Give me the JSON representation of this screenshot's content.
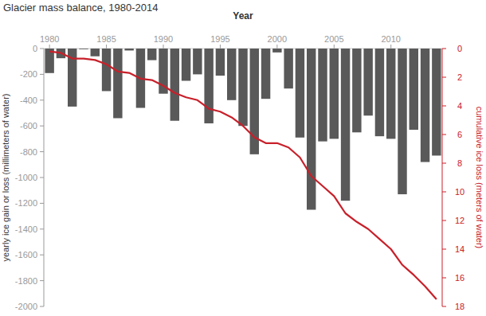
{
  "chart_data": {
    "type": "bar",
    "title": "Glacier mass balance, 1980-2014",
    "xlabel": "Year",
    "ylabel": "yearly ice gain or loss  (millimeters of water)",
    "y2label": "cumulative ice loss (meters of water)",
    "x": [
      1980,
      1981,
      1982,
      1983,
      1984,
      1985,
      1986,
      1987,
      1988,
      1989,
      1990,
      1991,
      1992,
      1993,
      1994,
      1995,
      1996,
      1997,
      1998,
      1999,
      2000,
      2001,
      2002,
      2003,
      2004,
      2005,
      2006,
      2007,
      2008,
      2009,
      2010,
      2011,
      2012,
      2013,
      2014
    ],
    "xlim": [
      1979.5,
      2014.5
    ],
    "xticks": [
      1980,
      1985,
      1990,
      1995,
      2000,
      2005,
      2010
    ],
    "ylim": [
      -2000,
      0
    ],
    "yticks": [
      -2000,
      -1800,
      -1600,
      -1400,
      -1200,
      -1000,
      -800,
      -600,
      -400,
      -200,
      0
    ],
    "y2lim": [
      18,
      0
    ],
    "y2ticks": [
      0,
      2,
      4,
      6,
      8,
      10,
      12,
      14,
      16,
      18
    ],
    "grid": false,
    "series": [
      {
        "type": "bar",
        "color": "#595959",
        "values": [
          -190,
          -75,
          -450,
          -5,
          -60,
          -330,
          -540,
          -15,
          -460,
          -90,
          -350,
          -560,
          -250,
          -200,
          -580,
          -210,
          -400,
          -600,
          -820,
          -390,
          -30,
          -310,
          -690,
          -1250,
          -720,
          -700,
          -1180,
          -650,
          -520,
          -680,
          -700,
          -1130,
          -630,
          -880,
          -830
        ]
      },
      {
        "type": "line",
        "color": "#c8202a",
        "axis": "y2",
        "values": [
          0.2,
          0.3,
          0.7,
          0.7,
          0.8,
          1.1,
          1.6,
          1.7,
          2.1,
          2.2,
          2.6,
          3.1,
          3.4,
          3.6,
          4.2,
          4.4,
          4.8,
          5.4,
          6.2,
          6.6,
          6.6,
          6.9,
          7.6,
          8.9,
          9.6,
          10.3,
          11.5,
          12.1,
          12.6,
          13.3,
          14.0,
          15.1,
          15.8,
          16.6,
          17.5
        ]
      }
    ]
  }
}
